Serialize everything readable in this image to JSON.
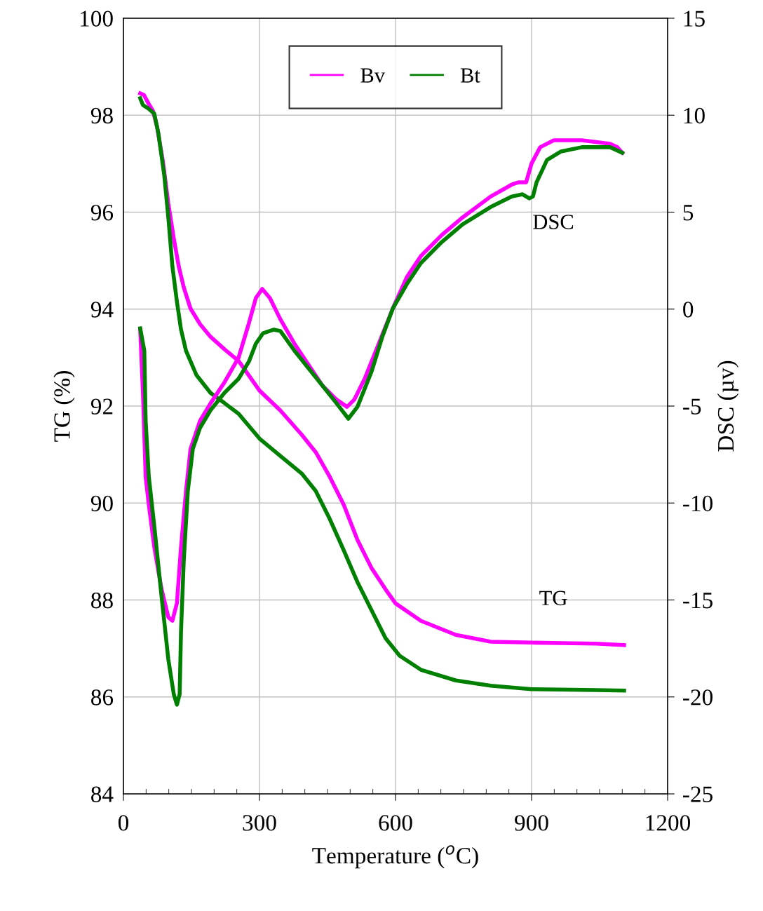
{
  "chart_data": {
    "type": "line",
    "xlabel": "Temperature ($^{o}$C)",
    "ylabel": "TG (%)",
    "y2label": "DSC (µv)",
    "xlim": [
      0,
      1200
    ],
    "xticks": [
      0,
      {
        "value": 50,
        "label": null
      },
      {
        "value": 100,
        "label": null
      },
      {
        "value": 150,
        "label": null
      },
      {
        "value": 200,
        "label": null
      },
      {
        "value": 250,
        "label": null
      },
      300,
      {
        "value": 350,
        "label": null
      },
      {
        "value": 400,
        "label": null
      },
      {
        "value": 450,
        "label": null
      },
      {
        "value": 500,
        "label": null
      },
      {
        "value": 550,
        "label": null
      },
      600,
      {
        "value": 650,
        "label": null
      },
      {
        "value": 700,
        "label": null
      },
      {
        "value": 750,
        "label": null
      },
      {
        "value": 800,
        "label": null
      },
      {
        "value": 850,
        "label": null
      },
      900,
      {
        "value": 950,
        "label": null
      },
      {
        "value": 1000,
        "label": null
      },
      {
        "value": 1050,
        "label": null
      },
      {
        "value": 1100,
        "label": null
      },
      {
        "value": 1150,
        "label": null
      },
      1200
    ],
    "ylim": [
      84,
      100
    ],
    "yticks": [
      84,
      86,
      88,
      90,
      92,
      94,
      96,
      98,
      100
    ],
    "y2lim": [
      -25,
      15
    ],
    "y2ticks": [
      -25,
      -20,
      -15,
      -10,
      -5,
      0,
      5,
      10,
      15
    ],
    "grid": true,
    "legend": "top",
    "line_style": "solid",
    "marker": "none",
    "annotations": [
      "DSC",
      "TG"
    ],
    "series": [
      {
        "name": "Bv",
        "color": "#ff00ff",
        "x": [
          37,
          45,
          56,
          65,
          74,
          87,
          99,
          111,
          122,
          133,
          148,
          169,
          192,
          223,
          254,
          300,
          346,
          393,
          424,
          455,
          486,
          516,
          547,
          578,
          600,
          656,
          733,
          810,
          900,
          965,
          1042,
          1104
        ],
        "values": [
          98.45,
          98.42,
          98.23,
          98.09,
          97.77,
          97.05,
          96.18,
          95.46,
          94.88,
          94.45,
          94.01,
          93.69,
          93.43,
          93.17,
          92.93,
          92.32,
          91.91,
          91.41,
          91.05,
          90.54,
          89.96,
          89.24,
          88.66,
          88.22,
          87.93,
          87.57,
          87.28,
          87.14,
          87.12,
          87.11,
          87.1,
          87.07
        ]
      },
      {
        "name": "Bt",
        "color": "#008000",
        "x": [
          37,
          43,
          56,
          68,
          77,
          90,
          99,
          108,
          118,
          127,
          138,
          161,
          192,
          223,
          254,
          300,
          346,
          393,
          424,
          455,
          486,
          516,
          547,
          578,
          609,
          656,
          733,
          810,
          900,
          1042,
          1104
        ],
        "values": [
          98.35,
          98.21,
          98.13,
          98.03,
          97.63,
          96.76,
          95.89,
          94.88,
          94.15,
          93.58,
          93.14,
          92.64,
          92.27,
          92.06,
          91.84,
          91.33,
          90.97,
          90.61,
          90.25,
          89.67,
          89.02,
          88.37,
          87.79,
          87.21,
          86.85,
          86.56,
          86.34,
          86.23,
          86.16,
          86.14,
          86.13
        ]
      },
      {
        "color": "#ff00ff",
        "axis": "y2",
        "x": [
          37,
          43,
          49,
          56,
          68,
          84,
          99,
          108,
          118,
          127,
          138,
          148,
          169,
          192,
          223,
          254,
          277,
          292,
          306,
          323,
          346,
          377,
          408,
          439,
          470,
          493,
          509,
          532,
          563,
          594,
          625,
          656,
          702,
          748,
          810,
          857,
          872,
          888,
          900,
          919,
          949,
          965,
          1011,
          1073,
          1089,
          1100
        ],
        "values": [
          -1.06,
          -4.31,
          -8.65,
          -10.1,
          -12.27,
          -14.44,
          -15.89,
          -16.07,
          -15.16,
          -12.27,
          -9.38,
          -7.21,
          -5.76,
          -4.86,
          -3.77,
          -2.5,
          -0.7,
          0.57,
          1.04,
          0.57,
          -0.52,
          -1.78,
          -2.87,
          -3.95,
          -4.67,
          -5.04,
          -4.67,
          -3.59,
          -1.78,
          0.03,
          1.65,
          2.74,
          3.82,
          4.73,
          5.81,
          6.43,
          6.54,
          6.54,
          7.51,
          8.35,
          8.71,
          8.71,
          8.71,
          8.53,
          8.35,
          8.06
        ]
      },
      {
        "color": "#008000",
        "axis": "y2",
        "x": [
          37,
          46,
          49,
          56,
          68,
          84,
          99,
          111,
          118,
          124,
          127,
          133,
          142,
          153,
          169,
          192,
          223,
          254,
          277,
          292,
          308,
          331,
          346,
          377,
          408,
          439,
          470,
          496,
          516,
          547,
          571,
          594,
          625,
          656,
          702,
          748,
          810,
          857,
          880,
          895,
          903,
          911,
          934,
          965,
          1011,
          1073,
          1100
        ],
        "values": [
          -0.99,
          -2.14,
          -5.76,
          -8.65,
          -11.18,
          -14.8,
          -18.06,
          -19.86,
          -20.4,
          -19.86,
          -16.61,
          -12.99,
          -9.38,
          -7.21,
          -6.12,
          -5.22,
          -4.31,
          -3.59,
          -2.69,
          -1.78,
          -1.24,
          -1.06,
          -1.13,
          -2.14,
          -3.05,
          -3.95,
          -4.86,
          -5.65,
          -5.04,
          -3.23,
          -1.42,
          0.03,
          1.29,
          2.38,
          3.46,
          4.37,
          5.27,
          5.81,
          5.92,
          5.71,
          5.81,
          6.54,
          7.69,
          8.13,
          8.35,
          8.35,
          8.06
        ]
      }
    ]
  }
}
